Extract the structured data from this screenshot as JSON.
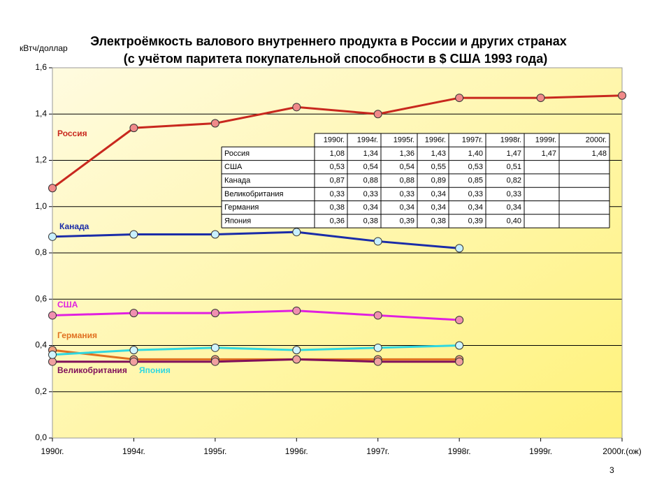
{
  "chart_data": {
    "type": "line",
    "title": "Электроёмкость валового внутреннего продукта в России и других странах",
    "subtitle": "(с учётом паритета покупательной способности в $ США 1993 года)",
    "y_label": "кВтч/доллар",
    "categories": [
      "1990г.",
      "1994г.",
      "1995г.",
      "1996г.",
      "1997г.",
      "1998г.",
      "1999г.",
      "2000г.(ож)"
    ],
    "ylim": [
      0,
      1.6
    ],
    "yticks": [
      {
        "value": 0,
        "label": "0,0"
      },
      {
        "value": 0.2,
        "label": "0,2"
      },
      {
        "value": 0.4,
        "label": "0,4"
      },
      {
        "value": 0.6,
        "label": "0,6"
      },
      {
        "value": 0.8,
        "label": "0,8"
      },
      {
        "value": 1.0,
        "label": "1,0"
      },
      {
        "value": 1.2,
        "label": "1,2"
      },
      {
        "value": 1.4,
        "label": "1,4"
      },
      {
        "value": 1.6,
        "label": "1,6"
      }
    ],
    "grid": true,
    "series": [
      {
        "name": "Россия",
        "color": "#c8281e",
        "marker": "#f08a8a",
        "values": [
          1.08,
          1.34,
          1.36,
          1.43,
          1.4,
          1.47,
          1.47,
          1.48
        ]
      },
      {
        "name": "Канада",
        "color": "#1a2ca8",
        "marker": "#c8f0ff",
        "values": [
          0.87,
          0.88,
          0.88,
          0.89,
          0.85,
          0.82,
          null,
          null
        ]
      },
      {
        "name": "США",
        "color": "#e020e0",
        "marker": "#f090b0",
        "values": [
          0.53,
          0.54,
          0.54,
          0.55,
          0.53,
          0.51,
          null,
          null
        ]
      },
      {
        "name": "Германия",
        "color": "#e07020",
        "marker": "#f0a080",
        "values": [
          0.38,
          0.34,
          0.34,
          0.34,
          0.34,
          0.34,
          null,
          null
        ]
      },
      {
        "name": "Великобритания",
        "color": "#80105a",
        "marker": "#f0a0a0",
        "values": [
          0.33,
          0.33,
          0.33,
          0.34,
          0.33,
          0.33,
          null,
          null
        ]
      },
      {
        "name": "Япония",
        "color": "#30d8e0",
        "marker": "#d0f4ff",
        "values": [
          0.36,
          0.38,
          0.39,
          0.38,
          0.39,
          0.4,
          null,
          null
        ]
      }
    ],
    "table": {
      "header": [
        "1990г.",
        "1994г.",
        "1995г.",
        "1996г.",
        "1997г.",
        "1998г.",
        "1999г.",
        "2000г."
      ],
      "rows": [
        [
          "Россия",
          "1,08",
          "1,34",
          "1,36",
          "1,43",
          "1,40",
          "1,47",
          "1,47",
          "1,48"
        ],
        [
          "США",
          "0,53",
          "0,54",
          "0,54",
          "0,55",
          "0,53",
          "0,51"
        ],
        [
          "Канада",
          "0,87",
          "0,88",
          "0,88",
          "0,89",
          "0,85",
          "0,82"
        ],
        [
          "Великобритания",
          "0,33",
          "0,33",
          "0,33",
          "0,34",
          "0,33",
          "0,33"
        ],
        [
          "Германия",
          "0,38",
          "0,34",
          "0,34",
          "0,34",
          "0,34",
          "0,34"
        ],
        [
          "Япония",
          "0,36",
          "0,38",
          "0,39",
          "0,38",
          "0,39",
          "0,40"
        ]
      ]
    },
    "page_number": "3"
  }
}
